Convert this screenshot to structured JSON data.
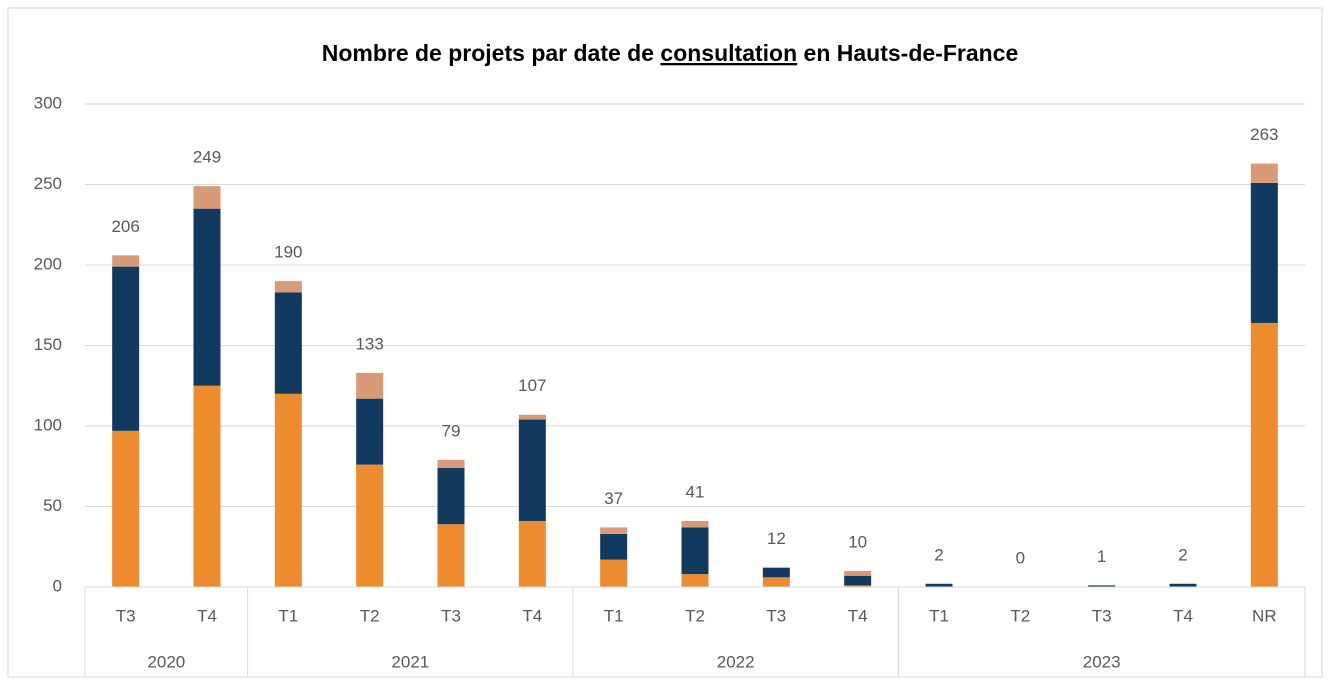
{
  "chart_data": {
    "type": "stacked_bar",
    "title": [
      "Nombre de projets par date de ",
      "consultation",
      " en Hauts-de-France"
    ],
    "categories": [
      "T3",
      "T4",
      "T1",
      "T2",
      "T3",
      "T4",
      "T1",
      "T2",
      "T3",
      "T4",
      "T1",
      "T2",
      "T3",
      "T4",
      "NR"
    ],
    "groups": [
      {
        "label": "2020",
        "span": 2
      },
      {
        "label": "2021",
        "span": 4
      },
      {
        "label": "2022",
        "span": 4
      },
      {
        "label": "2023",
        "span": 5
      }
    ],
    "series": [
      {
        "color": "#ed8b2f",
        "values": [
          97,
          125,
          120,
          76,
          39,
          41,
          17,
          8,
          6,
          1,
          0,
          0,
          0,
          0,
          164
        ]
      },
      {
        "color": "#123a5e",
        "values": [
          102,
          110,
          63,
          41,
          35,
          63,
          16,
          29,
          6,
          6,
          2,
          0,
          1,
          2,
          87
        ]
      },
      {
        "color": "#d99a78",
        "values": [
          7,
          14,
          7,
          16,
          5,
          3,
          4,
          4,
          0,
          3,
          0,
          0,
          0,
          0,
          12
        ]
      }
    ],
    "totals": [
      206,
      249,
      190,
      133,
      79,
      107,
      37,
      41,
      12,
      10,
      2,
      0,
      1,
      2,
      263
    ],
    "ylim": [
      0,
      300
    ],
    "yticks": [
      0,
      50,
      100,
      150,
      200,
      250,
      300
    ],
    "grid": true
  }
}
